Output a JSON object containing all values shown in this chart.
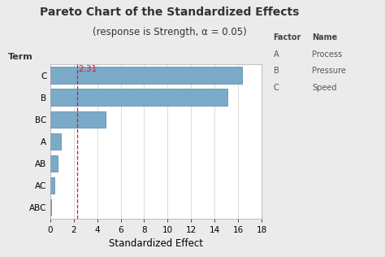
{
  "title": "Pareto Chart of the Standardized Effects",
  "subtitle_full": "(response is Strength, α = 0.05)",
  "xlabel": "Standardized Effect",
  "ylabel": "Term",
  "terms": [
    "ABC",
    "AC",
    "AB",
    "A",
    "BC",
    "B",
    "C"
  ],
  "values": [
    0.08,
    0.35,
    0.65,
    0.9,
    4.7,
    15.1,
    16.3
  ],
  "reference_line": 2.31,
  "xlim": [
    0,
    18
  ],
  "xticks": [
    0,
    2,
    4,
    6,
    8,
    10,
    12,
    14,
    16,
    18
  ],
  "bar_color": "#7baac8",
  "bar_edgecolor": "#6090b0",
  "reference_line_color": "#cc2222",
  "background_color": "#ebebeb",
  "plot_bg_color": "#ffffff",
  "legend_title_factor": "Factor",
  "legend_title_name": "Name",
  "legend_entries": [
    {
      "factor": "A",
      "name": "Process"
    },
    {
      "factor": "B",
      "name": "Pressure"
    },
    {
      "factor": "C",
      "name": "Speed"
    }
  ],
  "ref_label": "2.31",
  "title_fontsize": 10,
  "subtitle_fontsize": 8.5,
  "axis_label_fontsize": 8.5,
  "tick_fontsize": 7.5,
  "legend_fontsize": 7,
  "term_label_fontsize": 8
}
